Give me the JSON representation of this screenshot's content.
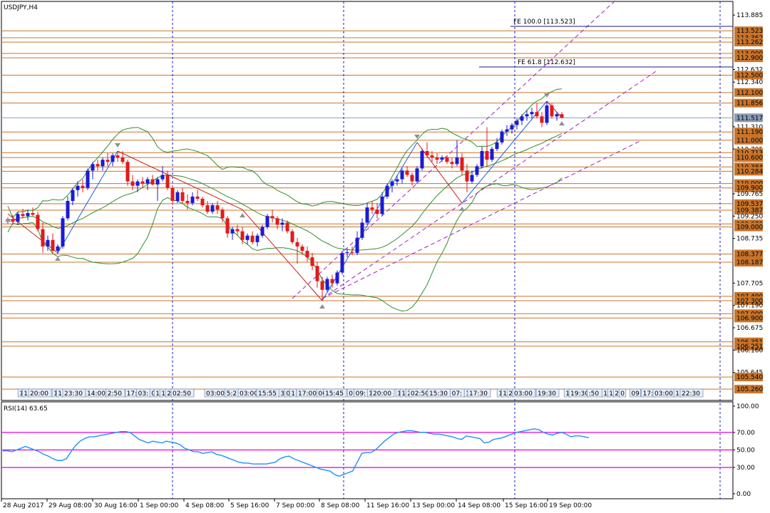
{
  "window": {
    "symbol_title": "USDJPY,H4",
    "rsi_title": "RSI(14) 63.65",
    "fe_1000_label": "FE 100.0 [113.523]",
    "fe_618_label": "FE 61.8 [112.632]",
    "current_price": "111.517"
  },
  "colors": {
    "bull": "#1a1ad6",
    "bear": "#e01b1b",
    "level": "#c8742c",
    "bollinger": "#2f8f2f",
    "channel": "#a020c0",
    "zigzag_up": "#1e5fe0",
    "zigzag_down": "#c81e1e",
    "rsi": "#1e90ff",
    "rsi_levels": "#e000e0",
    "separator": "#1a1ad6"
  },
  "chart_data": [
    {
      "type": "candlestick",
      "title": "USDJPY,H4",
      "ylim": [
        105.0,
        114.2
      ],
      "price_axis_labels": [
        "113.885",
        "113.523",
        "113.362",
        "113.262",
        "113.000",
        "112.900",
        "112.632",
        "112.500",
        "112.340",
        "112.100",
        "111.856",
        "111.517",
        "111.310",
        "111.190",
        "111.000",
        "110.795",
        "110.713",
        "110.600",
        "110.384",
        "110.284",
        "110.000",
        "109.900",
        "109.765",
        "109.537",
        "109.387",
        "109.250",
        "109.070",
        "109.000",
        "108.735",
        "108.377",
        "108.187",
        "107.705",
        "107.400",
        "107.300",
        "107.190",
        "107.000",
        "106.900",
        "106.675",
        "106.351",
        "106.251",
        "106.160",
        "105.645",
        "105.540",
        "105.260"
      ],
      "levels": [
        113.523,
        113.362,
        113.262,
        113.0,
        112.9,
        112.5,
        112.1,
        111.856,
        111.19,
        111.0,
        110.713,
        110.6,
        110.384,
        110.284,
        110.0,
        109.9,
        109.537,
        109.387,
        109.07,
        109.0,
        108.377,
        108.187,
        107.4,
        107.3,
        107.0,
        106.9,
        106.351,
        106.251,
        105.54,
        105.26
      ],
      "x_labels": [
        "28 Aug 2017",
        "29 Aug 08:00",
        "30 Aug 16:00",
        "1 Sep 00:00",
        "4 Sep 08:00",
        "5 Sep 16:00",
        "7 Sep 00:00",
        "8 Sep 08:00",
        "11 Sep 16:00",
        "13 Sep 00:00",
        "14 Sep 08:00",
        "15 Sep 16:00",
        "19 Sep 00:00"
      ],
      "candles": [
        [
          109.15,
          109.22,
          109.08,
          109.18
        ],
        [
          109.18,
          109.28,
          109.05,
          109.12
        ],
        [
          109.12,
          109.35,
          109.05,
          109.3
        ],
        [
          109.3,
          109.42,
          109.2,
          109.25
        ],
        [
          109.25,
          109.4,
          109.15,
          109.32
        ],
        [
          109.32,
          109.45,
          109.25,
          109.28
        ],
        [
          109.28,
          109.35,
          108.9,
          108.95
        ],
        [
          108.95,
          109.1,
          108.4,
          108.55
        ],
        [
          108.55,
          108.8,
          108.45,
          108.7
        ],
        [
          108.7,
          108.85,
          108.4,
          108.45
        ],
        [
          108.45,
          108.6,
          108.38,
          108.55
        ],
        [
          108.55,
          109.25,
          108.5,
          109.2
        ],
        [
          109.2,
          109.7,
          109.15,
          109.6
        ],
        [
          109.6,
          109.9,
          109.5,
          109.85
        ],
        [
          109.85,
          110.05,
          109.7,
          109.95
        ],
        [
          109.95,
          110.1,
          109.8,
          109.9
        ],
        [
          109.9,
          110.35,
          109.85,
          110.3
        ],
        [
          110.3,
          110.5,
          110.1,
          110.45
        ],
        [
          110.45,
          110.55,
          110.3,
          110.4
        ],
        [
          110.4,
          110.6,
          110.3,
          110.55
        ],
        [
          110.55,
          110.7,
          110.4,
          110.5
        ],
        [
          110.5,
          110.7,
          110.4,
          110.65
        ],
        [
          110.65,
          110.75,
          110.5,
          110.6
        ],
        [
          110.6,
          110.75,
          110.45,
          110.5
        ],
        [
          110.5,
          110.55,
          109.95,
          110.05
        ],
        [
          110.05,
          110.2,
          109.85,
          109.95
        ],
        [
          109.95,
          110.1,
          109.8,
          110.05
        ],
        [
          110.05,
          110.15,
          109.9,
          110.0
        ],
        [
          110.0,
          110.15,
          109.85,
          110.1
        ],
        [
          110.1,
          110.2,
          109.95,
          109.98
        ],
        [
          109.98,
          110.15,
          109.6,
          110.1
        ],
        [
          110.1,
          110.4,
          110.05,
          110.2
        ],
        [
          110.2,
          110.3,
          109.85,
          109.9
        ],
        [
          109.9,
          109.95,
          109.5,
          109.6
        ],
        [
          109.6,
          109.85,
          109.55,
          109.8
        ],
        [
          109.8,
          109.9,
          109.55,
          109.6
        ],
        [
          109.6,
          109.75,
          109.4,
          109.55
        ],
        [
          109.55,
          109.8,
          109.5,
          109.7
        ],
        [
          109.7,
          109.85,
          109.6,
          109.65
        ],
        [
          109.65,
          109.7,
          109.45,
          109.5
        ],
        [
          109.5,
          109.6,
          109.3,
          109.35
        ],
        [
          109.35,
          109.55,
          109.3,
          109.5
        ],
        [
          109.5,
          109.6,
          109.3,
          109.4
        ],
        [
          109.4,
          109.45,
          109.1,
          109.2
        ],
        [
          109.2,
          109.25,
          108.75,
          108.85
        ],
        [
          108.85,
          109.0,
          108.7,
          108.95
        ],
        [
          108.95,
          109.05,
          108.8,
          108.9
        ],
        [
          108.9,
          109.0,
          108.6,
          108.7
        ],
        [
          108.7,
          108.85,
          108.6,
          108.8
        ],
        [
          108.8,
          108.9,
          108.6,
          108.65
        ],
        [
          108.65,
          108.85,
          108.55,
          108.8
        ],
        [
          108.8,
          109.05,
          108.75,
          109.0
        ],
        [
          109.0,
          109.3,
          108.95,
          109.25
        ],
        [
          109.25,
          109.4,
          109.1,
          109.2
        ],
        [
          109.2,
          109.25,
          108.95,
          109.05
        ],
        [
          109.05,
          109.2,
          108.9,
          109.1
        ],
        [
          109.1,
          109.15,
          108.85,
          108.9
        ],
        [
          108.9,
          108.95,
          108.6,
          108.65
        ],
        [
          108.65,
          108.75,
          108.15,
          108.55
        ],
        [
          108.55,
          108.6,
          108.35,
          108.45
        ],
        [
          108.45,
          108.55,
          108.2,
          108.3
        ],
        [
          108.3,
          108.4,
          108.0,
          108.1
        ],
        [
          108.1,
          108.2,
          107.6,
          107.75
        ],
        [
          107.75,
          107.85,
          107.3,
          107.55
        ],
        [
          107.55,
          107.85,
          107.5,
          107.8
        ],
        [
          107.8,
          107.9,
          107.6,
          107.7
        ],
        [
          107.7,
          108.0,
          107.65,
          107.95
        ],
        [
          107.95,
          108.45,
          107.9,
          108.4
        ],
        [
          108.4,
          108.5,
          108.3,
          108.42
        ],
        [
          108.42,
          108.55,
          108.35,
          108.4
        ],
        [
          108.4,
          108.9,
          108.35,
          108.75
        ],
        [
          108.75,
          109.2,
          108.7,
          109.1
        ],
        [
          109.1,
          109.55,
          109.05,
          109.45
        ],
        [
          109.45,
          109.6,
          109.3,
          109.4
        ],
        [
          109.4,
          109.55,
          109.2,
          109.3
        ],
        [
          109.3,
          109.8,
          109.25,
          109.7
        ],
        [
          109.7,
          110.0,
          109.65,
          109.95
        ],
        [
          109.95,
          110.1,
          109.8,
          110.05
        ],
        [
          110.05,
          110.2,
          109.95,
          110.1
        ],
        [
          110.1,
          110.35,
          110.0,
          110.3
        ],
        [
          110.3,
          110.4,
          110.15,
          110.2
        ],
        [
          110.2,
          110.25,
          109.95,
          110.05
        ],
        [
          110.05,
          110.4,
          110.0,
          110.35
        ],
        [
          110.35,
          110.8,
          110.3,
          110.75
        ],
        [
          110.75,
          110.95,
          110.6,
          110.65
        ],
        [
          110.65,
          110.75,
          110.5,
          110.6
        ],
        [
          110.6,
          110.7,
          110.45,
          110.55
        ],
        [
          110.55,
          110.65,
          110.5,
          110.6
        ],
        [
          110.6,
          110.65,
          110.45,
          110.5
        ],
        [
          110.5,
          110.6,
          110.35,
          110.45
        ],
        [
          110.45,
          111.0,
          110.4,
          110.6
        ],
        [
          110.6,
          110.7,
          110.2,
          110.3
        ],
        [
          110.3,
          110.45,
          109.8,
          110.05
        ],
        [
          110.05,
          110.3,
          110.0,
          110.2
        ],
        [
          110.2,
          110.45,
          110.15,
          110.4
        ],
        [
          110.4,
          110.85,
          110.35,
          110.75
        ],
        [
          110.75,
          111.3,
          110.4,
          110.55
        ],
        [
          110.55,
          110.85,
          110.5,
          110.8
        ],
        [
          110.8,
          111.05,
          110.75,
          110.95
        ],
        [
          110.95,
          111.25,
          110.9,
          111.2
        ],
        [
          111.2,
          111.35,
          111.1,
          111.25
        ],
        [
          111.25,
          111.4,
          111.15,
          111.35
        ],
        [
          111.35,
          111.5,
          111.25,
          111.45
        ],
        [
          111.45,
          111.6,
          111.35,
          111.55
        ],
        [
          111.55,
          111.7,
          111.45,
          111.6
        ],
        [
          111.6,
          111.75,
          111.5,
          111.65
        ],
        [
          111.65,
          111.85,
          111.5,
          111.55
        ],
        [
          111.55,
          111.65,
          111.3,
          111.4
        ],
        [
          111.4,
          111.9,
          111.35,
          111.8
        ],
        [
          111.8,
          111.85,
          111.5,
          111.55
        ],
        [
          111.55,
          111.65,
          111.45,
          111.6
        ],
        [
          111.6,
          111.65,
          111.5,
          111.52
        ]
      ],
      "zigzag": [
        {
          "i": 0,
          "p": 109.3
        },
        {
          "i": 10,
          "p": 108.4
        },
        {
          "i": 22,
          "p": 110.75
        },
        {
          "i": 47,
          "p": 109.4
        },
        {
          "i": 63,
          "p": 107.3
        },
        {
          "i": 82,
          "p": 110.95
        },
        {
          "i": 91,
          "p": 109.55
        },
        {
          "i": 108,
          "p": 111.9
        },
        {
          "i": 111,
          "p": 111.52
        }
      ],
      "channel": {
        "upper": [
          [
            57,
            107.35
          ],
          [
            122,
            114.25
          ]
        ],
        "middle": [
          [
            63,
            107.35
          ],
          [
            130,
            112.6
          ]
        ],
        "lower": [
          [
            63,
            107.35
          ],
          [
            127,
            111.0
          ]
        ]
      },
      "separators_x": [
        24,
        66,
        111
      ]
    },
    {
      "type": "line",
      "title": "RSI(14) 63.65",
      "ylim": [
        0,
        100
      ],
      "tick_labels": [
        "100.00",
        "70.00",
        "50.00",
        "30.00",
        "0.00"
      ],
      "levels": [
        70,
        50,
        30
      ],
      "values": [
        49,
        49,
        48,
        50,
        52,
        54,
        52,
        50,
        48,
        45,
        43,
        40,
        38,
        38,
        40,
        48,
        55,
        60,
        63,
        65,
        65,
        66,
        67,
        68,
        69,
        70,
        71,
        71,
        70,
        66,
        62,
        60,
        58,
        60,
        59,
        58,
        60,
        59,
        58,
        56,
        52,
        50,
        48,
        48,
        46,
        47,
        48,
        45,
        44,
        42,
        40,
        38,
        36,
        35,
        35,
        34,
        34,
        34,
        34,
        35,
        36,
        40,
        42,
        43,
        40,
        38,
        36,
        34,
        32,
        30,
        28,
        27,
        26,
        22,
        20,
        22,
        24,
        26,
        36,
        46,
        47,
        47,
        50,
        55,
        60,
        64,
        68,
        70,
        71,
        72,
        72,
        71,
        70,
        70,
        69,
        68,
        68,
        67,
        66,
        65,
        63,
        62,
        66,
        65,
        64,
        63,
        58,
        59,
        62,
        63,
        64,
        66,
        68,
        70,
        71,
        72,
        73,
        74,
        73,
        70,
        68,
        67,
        69,
        70,
        68,
        65,
        66,
        66,
        65,
        64
      ]
    }
  ]
}
